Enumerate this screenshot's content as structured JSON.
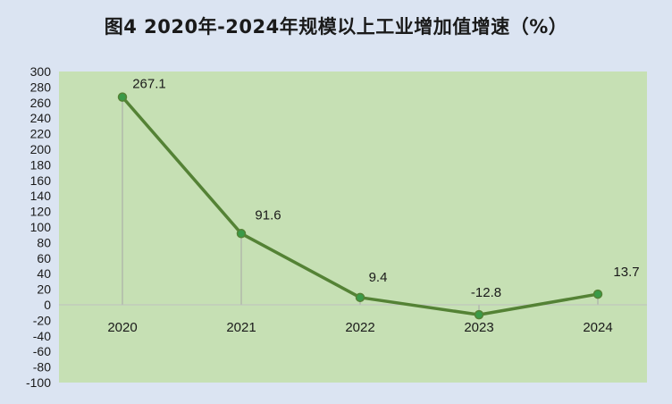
{
  "chart_data": {
    "type": "line",
    "title": "图4  2020年-2024年规模以上工业增加值增速（%）",
    "categories": [
      "2020",
      "2021",
      "2022",
      "2023",
      "2024"
    ],
    "series": [
      {
        "values": [
          267.1,
          91.6,
          9.4,
          -12.8,
          13.7
        ],
        "data_labels": [
          "267.1",
          "91.6",
          "9.4",
          "-12.8",
          "13.7"
        ]
      }
    ],
    "xlabel": "",
    "ylabel": "",
    "ylim": [
      -100,
      300
    ],
    "y_ticks": [
      300,
      280,
      260,
      240,
      220,
      200,
      180,
      160,
      140,
      120,
      100,
      80,
      60,
      40,
      20,
      0,
      -20,
      -40,
      -60,
      -80,
      -100
    ],
    "grid": false,
    "legend": "none",
    "colors": {
      "page_background": "#dbe4f2",
      "plot_background": "#c6e0b4",
      "line": "#548235",
      "marker": "#3a9a48",
      "drop_line": "#a6a6a6",
      "axis": "#bfbfbf",
      "text": "#1a1a1a"
    }
  }
}
